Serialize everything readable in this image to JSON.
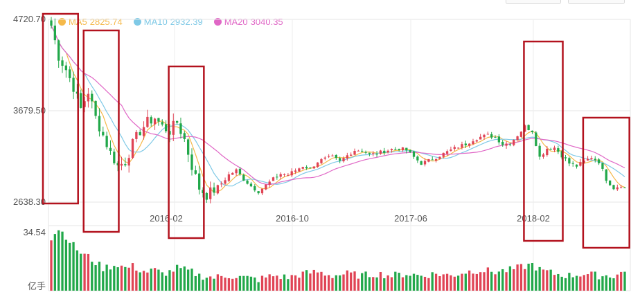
{
  "chart_data": {
    "type": "candlestick",
    "y_axis": {
      "max_label": "4720.70",
      "mid_label": "3679.50",
      "min_label": "2638.30",
      "range": [
        2638.3,
        4720.7
      ]
    },
    "volume_axis": {
      "max_label": "34.54",
      "unit_label": "亿手"
    },
    "x_ticks": [
      "2016-02",
      "2016-10",
      "2017-06",
      "2018-02"
    ],
    "legend": [
      {
        "label": "MA5",
        "value": "2825.74",
        "color": "#f5b94a"
      },
      {
        "label": "MA10",
        "value": "2932.39",
        "color": "#7fc9e6"
      },
      {
        "label": "MA20",
        "value": "3040.35",
        "color": "#e067c6"
      }
    ],
    "colors": {
      "up": "#e04455",
      "down": "#22a84a",
      "highlight_box": "#b3121e",
      "grid": "#e6e6e6"
    },
    "price_anchors": [
      [
        0,
        4650
      ],
      [
        2,
        4300
      ],
      [
        4,
        4150
      ],
      [
        6,
        3950
      ],
      [
        8,
        3700
      ],
      [
        10,
        3900
      ],
      [
        12,
        3600
      ],
      [
        14,
        3400
      ],
      [
        16,
        3200
      ],
      [
        18,
        3050
      ],
      [
        20,
        3100
      ],
      [
        22,
        3300
      ],
      [
        24,
        3450
      ],
      [
        26,
        3550
      ],
      [
        28,
        3600
      ],
      [
        30,
        3500
      ],
      [
        32,
        3450
      ],
      [
        34,
        3550
      ],
      [
        36,
        3350
      ],
      [
        38,
        3050
      ],
      [
        40,
        2800
      ],
      [
        42,
        2720
      ],
      [
        44,
        2780
      ],
      [
        46,
        2850
      ],
      [
        48,
        2950
      ],
      [
        50,
        3000
      ],
      [
        52,
        2900
      ],
      [
        54,
        2820
      ],
      [
        56,
        2760
      ],
      [
        58,
        2830
      ],
      [
        60,
        2900
      ],
      [
        62,
        2960
      ],
      [
        64,
        2950
      ],
      [
        66,
        3000
      ],
      [
        68,
        3050
      ],
      [
        70,
        3020
      ],
      [
        72,
        3100
      ],
      [
        74,
        3130
      ],
      [
        76,
        3150
      ],
      [
        78,
        3100
      ],
      [
        80,
        3170
      ],
      [
        82,
        3230
      ],
      [
        84,
        3230
      ],
      [
        86,
        3180
      ],
      [
        88,
        3190
      ],
      [
        90,
        3220
      ],
      [
        92,
        3240
      ],
      [
        94,
        3250
      ],
      [
        96,
        3230
      ],
      [
        98,
        3150
      ],
      [
        100,
        3080
      ],
      [
        102,
        3110
      ],
      [
        104,
        3150
      ],
      [
        106,
        3190
      ],
      [
        108,
        3230
      ],
      [
        110,
        3270
      ],
      [
        112,
        3300
      ],
      [
        114,
        3350
      ],
      [
        116,
        3380
      ],
      [
        118,
        3400
      ],
      [
        120,
        3380
      ],
      [
        122,
        3300
      ],
      [
        124,
        3310
      ],
      [
        126,
        3400
      ],
      [
        128,
        3500
      ],
      [
        130,
        3450
      ],
      [
        132,
        3150
      ],
      [
        134,
        3250
      ],
      [
        136,
        3260
      ],
      [
        138,
        3170
      ],
      [
        140,
        3080
      ],
      [
        142,
        3050
      ],
      [
        144,
        3100
      ],
      [
        146,
        3150
      ],
      [
        148,
        3100
      ],
      [
        150,
        2900
      ],
      [
        152,
        2800
      ],
      [
        154,
        2830
      ],
      [
        155,
        2800
      ]
    ],
    "volume_anchors": [
      [
        0,
        28
      ],
      [
        2,
        33
      ],
      [
        4,
        29
      ],
      [
        6,
        24
      ],
      [
        8,
        20
      ],
      [
        10,
        18
      ],
      [
        12,
        15
      ],
      [
        14,
        12
      ],
      [
        16,
        13
      ],
      [
        18,
        14
      ],
      [
        20,
        12
      ],
      [
        22,
        13
      ],
      [
        24,
        11
      ],
      [
        26,
        10
      ],
      [
        28,
        11
      ],
      [
        30,
        9
      ],
      [
        32,
        10
      ],
      [
        34,
        12
      ],
      [
        36,
        11
      ],
      [
        38,
        10
      ],
      [
        40,
        8
      ],
      [
        44,
        7
      ],
      [
        48,
        8
      ],
      [
        52,
        7
      ],
      [
        56,
        6
      ],
      [
        60,
        8
      ],
      [
        64,
        7
      ],
      [
        68,
        9
      ],
      [
        72,
        10
      ],
      [
        76,
        8
      ],
      [
        80,
        9
      ],
      [
        84,
        8
      ],
      [
        88,
        9
      ],
      [
        92,
        8
      ],
      [
        96,
        9
      ],
      [
        100,
        8
      ],
      [
        104,
        9
      ],
      [
        108,
        8
      ],
      [
        112,
        10
      ],
      [
        116,
        11
      ],
      [
        120,
        10
      ],
      [
        124,
        11
      ],
      [
        128,
        13
      ],
      [
        130,
        14
      ],
      [
        132,
        11
      ],
      [
        136,
        9
      ],
      [
        140,
        8
      ],
      [
        144,
        9
      ],
      [
        148,
        8
      ],
      [
        152,
        8
      ],
      [
        155,
        10
      ]
    ],
    "count": 156,
    "ma_periods": [
      5,
      10,
      20
    ],
    "highlight_boxes": [
      {
        "from_index": -1,
        "to_index": 6
      },
      {
        "from_index": 10,
        "to_index": 17
      },
      {
        "from_index": 33,
        "to_index": 40
      },
      {
        "from_index": 129,
        "to_index": 137
      },
      {
        "from_index": 145,
        "to_index": 155
      }
    ]
  }
}
